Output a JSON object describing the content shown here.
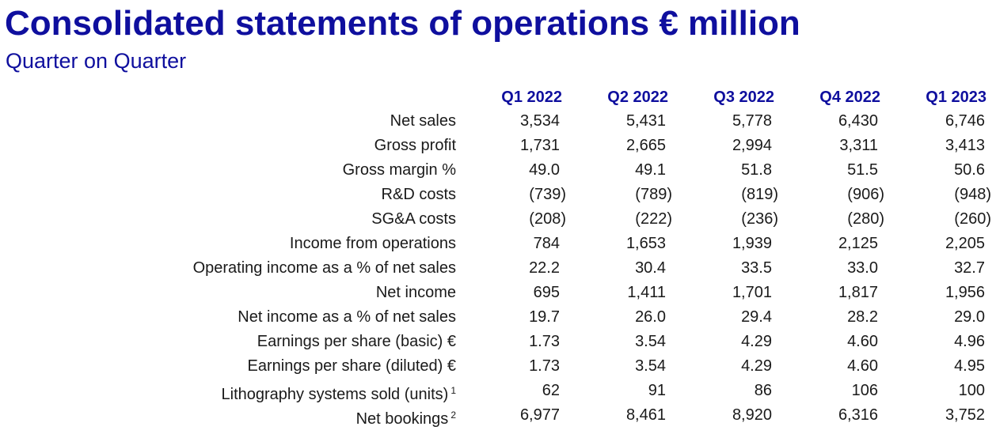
{
  "title": "Consolidated statements of operations € million",
  "subtitle": "Quarter on Quarter",
  "columns": [
    "Q1 2022",
    "Q2 2022",
    "Q3 2022",
    "Q4 2022",
    "Q1 2023"
  ],
  "rows": [
    {
      "label": "Net sales",
      "sup": "",
      "values": [
        "3,534",
        "5,431",
        "5,778",
        "6,430",
        "6,746"
      ]
    },
    {
      "label": "Gross profit",
      "sup": "",
      "values": [
        "1,731",
        "2,665",
        "2,994",
        "3,311",
        "3,413"
      ]
    },
    {
      "label": "Gross margin %",
      "sup": "",
      "values": [
        "49.0",
        "49.1",
        "51.8",
        "51.5",
        "50.6"
      ]
    },
    {
      "label": "R&D costs",
      "sup": "",
      "values": [
        "(739)",
        "(789)",
        "(819)",
        "(906)",
        "(948)"
      ]
    },
    {
      "label": "SG&A costs",
      "sup": "",
      "values": [
        "(208)",
        "(222)",
        "(236)",
        "(280)",
        "(260)"
      ]
    },
    {
      "label": "Income from operations",
      "sup": "",
      "values": [
        "784",
        "1,653",
        "1,939",
        "2,125",
        "2,205"
      ]
    },
    {
      "label": "Operating income as a % of net sales",
      "sup": "",
      "values": [
        "22.2",
        "30.4",
        "33.5",
        "33.0",
        "32.7"
      ]
    },
    {
      "label": "Net income",
      "sup": "",
      "values": [
        "695",
        "1,411",
        "1,701",
        "1,817",
        "1,956"
      ]
    },
    {
      "label": "Net income as a % of net sales",
      "sup": "",
      "values": [
        "19.7",
        "26.0",
        "29.4",
        "28.2",
        "29.0"
      ]
    },
    {
      "label": "Earnings per share (basic) €",
      "sup": "",
      "values": [
        "1.73",
        "3.54",
        "4.29",
        "4.60",
        "4.96"
      ]
    },
    {
      "label": "Earnings per share (diluted) €",
      "sup": "",
      "values": [
        "1.73",
        "3.54",
        "4.29",
        "4.60",
        "4.95"
      ]
    },
    {
      "label": "Lithography systems sold (units)",
      "sup": "1",
      "values": [
        "62",
        "91",
        "86",
        "106",
        "100"
      ]
    },
    {
      "label": "Net bookings",
      "sup": "2",
      "values": [
        "6,977",
        "8,461",
        "8,920",
        "6,316",
        "3,752"
      ]
    }
  ],
  "colors": {
    "heading": "#0f0f9e",
    "body_text": "#1a1a1a",
    "background": "#ffffff"
  }
}
